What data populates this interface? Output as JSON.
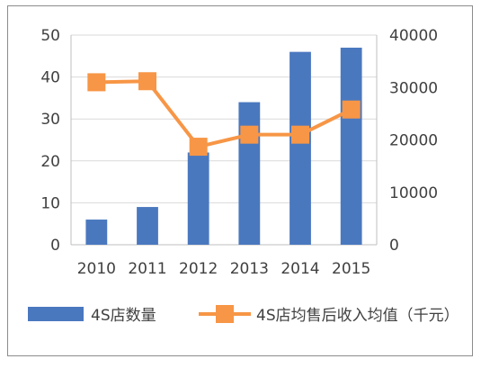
{
  "header": {
    "clipped_caption": ""
  },
  "colors": {
    "bar": "#4a78bf",
    "line": "#f79646",
    "grid": "#d9d9d9",
    "axis_text": "#404040"
  },
  "chart_data": {
    "type": "bar+line",
    "categories": [
      "2010",
      "2011",
      "2012",
      "2013",
      "2014",
      "2015"
    ],
    "series": [
      {
        "name": "4S店数量",
        "kind": "bar",
        "axis": "left",
        "values": [
          6,
          9,
          22,
          34,
          46,
          47
        ]
      },
      {
        "name": "4S店均售后收入均值（千元）",
        "kind": "line",
        "axis": "right",
        "values": [
          31000,
          31200,
          18700,
          21000,
          21000,
          25800
        ]
      }
    ],
    "y_left": {
      "ticks": [
        "0",
        "10",
        "20",
        "30",
        "40",
        "50"
      ],
      "range": [
        0,
        50
      ]
    },
    "y_right": {
      "ticks": [
        "0",
        "10000",
        "20000",
        "30000",
        "40000"
      ],
      "range": [
        0,
        40000
      ]
    },
    "legend_position": "bottom",
    "grid": true
  }
}
